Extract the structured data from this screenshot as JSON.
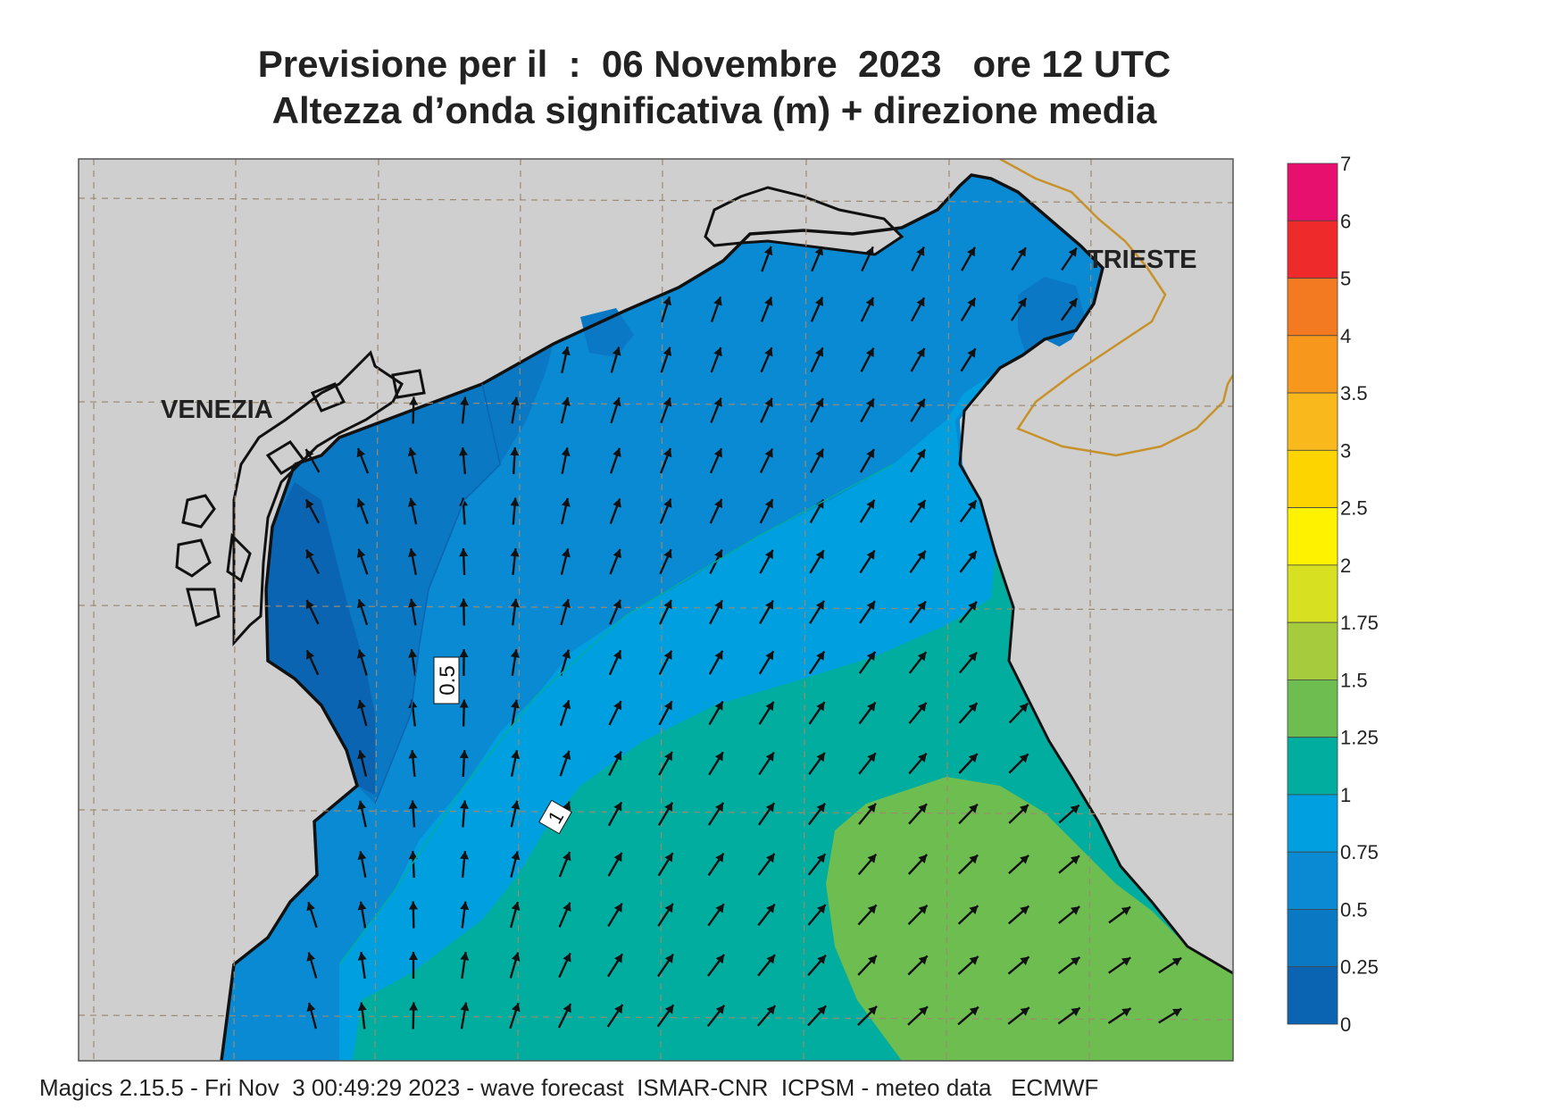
{
  "header": {
    "title_line1": "Previsione per il  :  06 Novembre  2023   ore 12 UTC",
    "title_line2": "Altezza d’onda significativa (m) + direzione media"
  },
  "map": {
    "places": [
      "VENEZIA",
      "TRIESTE"
    ],
    "contour_labels": [
      "0.5",
      "1"
    ],
    "colors": {
      "land": "#cfcfcf",
      "coast": "#111111",
      "border": "#c8922a",
      "grid": "#9c8a70"
    },
    "arrow_direction": "north / north-east (mean wave direction)"
  },
  "legend": {
    "levels": [
      "7",
      "6",
      "5",
      "4",
      "3.5",
      "3",
      "2.5",
      "2",
      "1.75",
      "1.5",
      "1.25",
      "1",
      "0.75",
      "0.5",
      "0.25",
      "0"
    ],
    "colors": [
      "#e8106e",
      "#ee2a2a",
      "#f47a22",
      "#f7981c",
      "#f9b81b",
      "#fdd400",
      "#fff200",
      "#d7e021",
      "#a6cb3c",
      "#6dbd51",
      "#00ad9f",
      "#009fdf",
      "#0a8ad3",
      "#0b78c4",
      "#0a64b1"
    ]
  },
  "footer": {
    "text": "Magics 2.15.5 - Fri Nov  3 00:49:29 2023 - wave forecast  ISMAR-CNR  ICPSM - meteo data   ECMWF"
  }
}
